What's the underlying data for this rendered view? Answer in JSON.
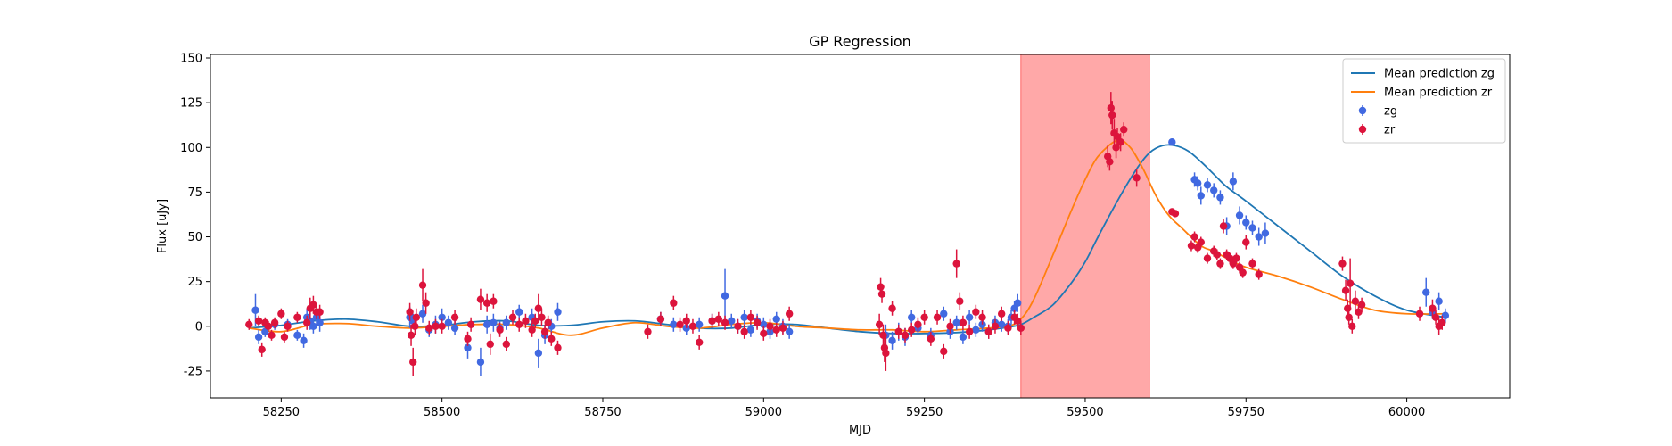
{
  "chart_data": {
    "type": "scatter",
    "title": "GP Regression",
    "xlabel": "MJD",
    "ylabel": "Flux [uJy]",
    "xlim": [
      58140,
      60160
    ],
    "ylim": [
      -40,
      152
    ],
    "xticks": [
      58250,
      58500,
      58750,
      59000,
      59250,
      59500,
      59750,
      60000
    ],
    "yticks": [
      -25,
      0,
      25,
      50,
      75,
      100,
      125,
      150
    ],
    "legend_position": "top-right",
    "shaded_region": {
      "x_start": 59400,
      "x_end": 59600,
      "color": "#ff9999"
    },
    "series": [
      {
        "name": "Mean prediction zg",
        "kind": "line",
        "color": "#1f77b4",
        "x": [
          58200,
          58250,
          58300,
          58350,
          58400,
          58450,
          58500,
          58550,
          58600,
          58650,
          58700,
          58750,
          58800,
          58850,
          58900,
          58950,
          59000,
          59050,
          59100,
          59150,
          59200,
          59250,
          59300,
          59350,
          59380,
          59400,
          59420,
          59450,
          59480,
          59500,
          59520,
          59550,
          59580,
          59600,
          59620,
          59640,
          59660,
          59680,
          59700,
          59720,
          59750,
          59800,
          59850,
          59900,
          59950,
          60000,
          60060
        ],
        "y": [
          -1,
          0.5,
          3,
          4,
          2.5,
          0,
          0.5,
          2.5,
          3,
          0.5,
          0.5,
          2.5,
          3,
          1,
          -1,
          -1,
          1,
          1,
          -1,
          -3,
          -4,
          -4,
          -3.5,
          -2,
          -0.5,
          1,
          5,
          12,
          25,
          36,
          50,
          70,
          88,
          97,
          101,
          101,
          98,
          92,
          85,
          78,
          70,
          56,
          42,
          28,
          17,
          9,
          5
        ]
      },
      {
        "name": "Mean prediction zr",
        "kind": "line",
        "color": "#ff7f0e",
        "x": [
          58200,
          58250,
          58300,
          58350,
          58400,
          58450,
          58500,
          58550,
          58600,
          58650,
          58700,
          58750,
          58800,
          58850,
          58900,
          58950,
          59000,
          59050,
          59100,
          59150,
          59200,
          59250,
          59300,
          59350,
          59380,
          59400,
          59420,
          59450,
          59480,
          59500,
          59520,
          59550,
          59570,
          59590,
          59610,
          59630,
          59650,
          59680,
          59700,
          59720,
          59750,
          59800,
          59850,
          59900,
          59950,
          60000,
          60060
        ],
        "y": [
          -1,
          -3,
          1,
          1.5,
          0,
          -1,
          0,
          1,
          1,
          -1,
          -5,
          -1,
          2,
          0,
          -1,
          1,
          2,
          0,
          -1,
          -2,
          -2,
          -3,
          -2,
          -1,
          0,
          4,
          15,
          40,
          66,
          82,
          95,
          104,
          100,
          88,
          73,
          62,
          55,
          45,
          42,
          38,
          33,
          28,
          22,
          15,
          9,
          7,
          7
        ]
      },
      {
        "name": "zg",
        "kind": "errorbar",
        "color": "#4169e1",
        "x": [
          58210,
          58215,
          58225,
          58240,
          58260,
          58275,
          58285,
          58290,
          58295,
          58300,
          58305,
          58310,
          58450,
          58455,
          58470,
          58480,
          58490,
          58500,
          58510,
          58520,
          58540,
          58560,
          58570,
          58580,
          58590,
          58600,
          58620,
          58640,
          58650,
          58660,
          58670,
          58680,
          58840,
          58860,
          58880,
          58900,
          58920,
          58940,
          58950,
          58960,
          58970,
          58980,
          58990,
          59000,
          59010,
          59020,
          59030,
          59040,
          59190,
          59200,
          59210,
          59220,
          59230,
          59240,
          59260,
          59280,
          59290,
          59300,
          59310,
          59320,
          59330,
          59340,
          59350,
          59360,
          59370,
          59380,
          59385,
          59390,
          59395,
          59635,
          59670,
          59675,
          59680,
          59690,
          59700,
          59710,
          59720,
          59730,
          59740,
          59750,
          59760,
          59770,
          59780,
          60030,
          60040,
          60050,
          60060
        ],
        "y": [
          9,
          -6,
          -3,
          1,
          1,
          -5,
          -8,
          5,
          3,
          0,
          5,
          2,
          5,
          3,
          7,
          -2,
          1,
          5,
          2,
          -1,
          -12,
          -20,
          1,
          2,
          -1,
          2,
          8,
          5,
          -15,
          -5,
          0,
          8,
          4,
          1,
          -1,
          1,
          3,
          17,
          3,
          0,
          5,
          -2,
          3,
          1,
          -3,
          4,
          0,
          -3,
          -5,
          -8,
          -3,
          -6,
          5,
          -1,
          -5,
          7,
          -3,
          2,
          -6,
          5,
          -2,
          1,
          -3,
          2,
          1,
          0,
          5,
          10,
          13,
          103,
          82,
          80,
          73,
          79,
          76,
          72,
          56,
          81,
          62,
          58,
          55,
          50,
          52,
          19,
          8,
          14,
          6
        ],
        "yerr": [
          9,
          4,
          3,
          3,
          3,
          3,
          4,
          5,
          5,
          4,
          4,
          5,
          6,
          4,
          5,
          4,
          5,
          5,
          4,
          4,
          6,
          8,
          5,
          5,
          4,
          4,
          4,
          5,
          8,
          5,
          4,
          5,
          4,
          4,
          4,
          4,
          4,
          15,
          4,
          4,
          4,
          4,
          4,
          4,
          4,
          4,
          4,
          4,
          6,
          5,
          5,
          5,
          4,
          4,
          4,
          4,
          4,
          4,
          4,
          4,
          4,
          4,
          4,
          4,
          4,
          4,
          4,
          4,
          5,
          2,
          4,
          4,
          5,
          4,
          4,
          4,
          5,
          5,
          5,
          4,
          4,
          5,
          6,
          8,
          4,
          5,
          4
        ]
      },
      {
        "name": "zr",
        "kind": "errorbar",
        "color": "#dc143c",
        "x": [
          58200,
          58215,
          58220,
          58225,
          58230,
          58235,
          58240,
          58250,
          58255,
          58260,
          58275,
          58290,
          58295,
          58300,
          58305,
          58310,
          58450,
          58452,
          58455,
          58458,
          58460,
          58470,
          58475,
          58480,
          58490,
          58500,
          58520,
          58540,
          58545,
          58560,
          58570,
          58575,
          58580,
          58590,
          58600,
          58610,
          58620,
          58630,
          58640,
          58645,
          58650,
          58655,
          58660,
          58665,
          58670,
          58680,
          58820,
          58840,
          58860,
          58870,
          58880,
          58890,
          58900,
          58920,
          58930,
          58940,
          58960,
          58970,
          58980,
          58990,
          59000,
          59010,
          59020,
          59030,
          59040,
          59180,
          59182,
          59184,
          59186,
          59188,
          59190,
          59200,
          59210,
          59220,
          59230,
          59240,
          59250,
          59260,
          59270,
          59280,
          59290,
          59300,
          59305,
          59310,
          59320,
          59330,
          59340,
          59350,
          59360,
          59370,
          59380,
          59390,
          59395,
          59400,
          59535,
          59538,
          59540,
          59542,
          59545,
          59548,
          59550,
          59555,
          59560,
          59580,
          59635,
          59640,
          59665,
          59670,
          59675,
          59680,
          59690,
          59700,
          59705,
          59710,
          59715,
          59720,
          59725,
          59730,
          59735,
          59740,
          59745,
          59750,
          59760,
          59770,
          59900,
          59905,
          59908,
          59910,
          59912,
          59915,
          59920,
          59925,
          59930,
          60020,
          60040,
          60045,
          60050,
          60055
        ],
        "y": [
          1,
          3,
          -13,
          2,
          0,
          -5,
          2,
          7,
          -6,
          0,
          5,
          2,
          10,
          12,
          8,
          8,
          8,
          -5,
          -20,
          0,
          5,
          23,
          13,
          -1,
          0,
          0,
          5,
          -7,
          1,
          15,
          13,
          -10,
          14,
          -2,
          -10,
          5,
          1,
          3,
          -2,
          3,
          10,
          5,
          -3,
          2,
          -7,
          -12,
          -3,
          4,
          13,
          1,
          3,
          0,
          -9,
          3,
          4,
          2,
          0,
          -3,
          5,
          2,
          -4,
          0,
          -2,
          -1,
          7,
          1,
          22,
          18,
          -5,
          -12,
          -15,
          10,
          -3,
          -5,
          -2,
          1,
          5,
          -7,
          5,
          -14,
          0,
          35,
          14,
          2,
          -3,
          8,
          5,
          -3,
          0,
          7,
          -1,
          5,
          3,
          -1,
          95,
          92,
          122,
          118,
          108,
          100,
          106,
          103,
          110,
          83,
          64,
          63,
          45,
          50,
          44,
          47,
          38,
          42,
          40,
          35,
          56,
          40,
          38,
          35,
          38,
          33,
          30,
          47,
          35,
          29,
          35,
          20,
          10,
          5,
          24,
          0,
          14,
          8,
          12,
          7,
          10,
          5,
          0,
          2
        ],
        "yerr": [
          3,
          3,
          4,
          3,
          3,
          3,
          3,
          3,
          3,
          3,
          3,
          4,
          6,
          5,
          4,
          4,
          5,
          6,
          8,
          5,
          5,
          9,
          6,
          4,
          4,
          4,
          4,
          4,
          4,
          6,
          5,
          6,
          4,
          4,
          4,
          4,
          4,
          4,
          4,
          4,
          8,
          5,
          4,
          4,
          4,
          4,
          4,
          4,
          4,
          4,
          4,
          4,
          4,
          4,
          4,
          4,
          4,
          4,
          4,
          4,
          4,
          4,
          4,
          4,
          4,
          6,
          5,
          5,
          6,
          8,
          10,
          4,
          4,
          4,
          4,
          4,
          4,
          4,
          4,
          4,
          4,
          8,
          5,
          4,
          4,
          4,
          4,
          4,
          4,
          4,
          4,
          4,
          4,
          4,
          6,
          5,
          9,
          8,
          8,
          6,
          5,
          5,
          4,
          5,
          2,
          2,
          3,
          3,
          3,
          3,
          3,
          3,
          3,
          3,
          4,
          3,
          3,
          3,
          3,
          3,
          3,
          4,
          3,
          3,
          4,
          6,
          5,
          4,
          14,
          4,
          6,
          4,
          4,
          4,
          5,
          4,
          5,
          4
        ]
      }
    ]
  }
}
